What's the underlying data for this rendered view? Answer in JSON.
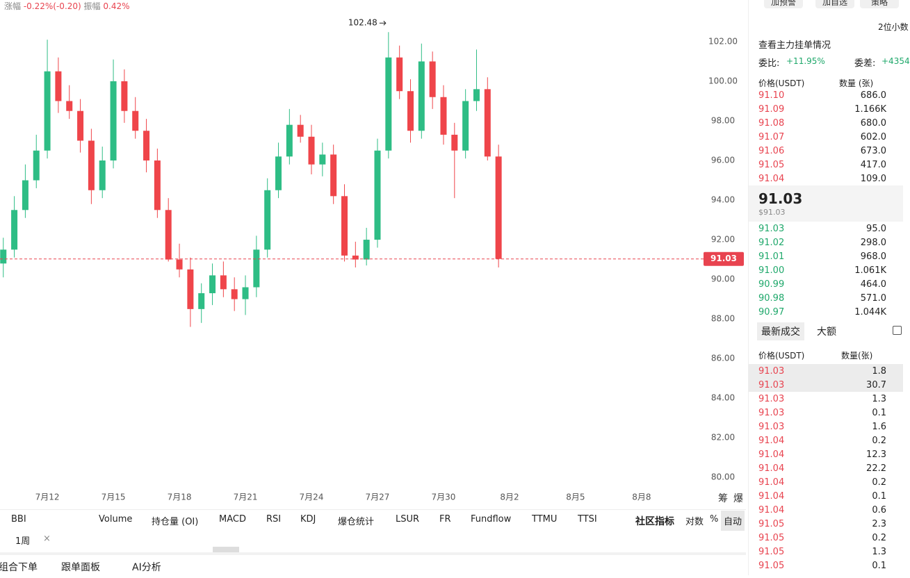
{
  "header": {
    "change_label": "涨幅",
    "change": "-0.22%(-0.20)",
    "amp_label": "振幅",
    "amp": "0.42%"
  },
  "chart_data": {
    "type": "candlestick",
    "x": [
      9,
      9.5,
      10,
      10.5,
      11,
      11.5,
      12,
      12.5,
      13,
      13.5,
      14,
      14.5,
      15,
      15.5,
      16,
      16.5,
      17,
      17.5,
      18,
      18.5,
      19,
      19.5,
      20,
      20.5,
      21,
      21.5,
      22,
      22.5,
      23,
      23.5,
      24,
      24.5,
      25,
      25.5,
      26,
      26.5,
      27,
      27.5,
      28,
      28.5,
      29,
      29.5,
      30,
      30.5,
      31,
      31.5
    ],
    "open": [
      90.8,
      91.5,
      93.5,
      95,
      96.5,
      100.5,
      99,
      98.5,
      97,
      94.5,
      96,
      100,
      98.5,
      97.5,
      96,
      93.5,
      91,
      90.5,
      88.5,
      89.3,
      90.2,
      89.5,
      89,
      89.6,
      91.5,
      94.5,
      96.2,
      97.8,
      97.2,
      95.8,
      96.3,
      94.2,
      91.2,
      91,
      92,
      96.5,
      101.2,
      99.5,
      97.5,
      101,
      99.2,
      97.3,
      96.5,
      99,
      99.6,
      96.2
    ],
    "high": [
      92.1,
      94.2,
      95.8,
      97.3,
      102.1,
      101.2,
      99.8,
      99.1,
      97.6,
      96.7,
      101.1,
      100.6,
      99.2,
      98.1,
      96.6,
      94.1,
      91.8,
      91.1,
      89.8,
      90.8,
      90.9,
      90.1,
      90.2,
      92.2,
      95.1,
      96.9,
      98.6,
      98.3,
      97.8,
      96.9,
      96.8,
      94.8,
      91.9,
      92.6,
      97.1,
      102.48,
      101.8,
      100.1,
      101.9,
      101.5,
      99.8,
      97.9,
      99.6,
      101.6,
      100.2,
      96.8
    ],
    "low": [
      90.1,
      91.1,
      93.1,
      94.6,
      96.1,
      98.4,
      98.1,
      96.4,
      93.8,
      94.1,
      95.6,
      97.9,
      97.1,
      95.4,
      93.1,
      90.9,
      90.1,
      87.6,
      87.8,
      88.7,
      89.1,
      88.4,
      88.2,
      89.1,
      91.1,
      94.1,
      95.8,
      96.9,
      95.3,
      95.2,
      93.8,
      90.9,
      90.6,
      90.7,
      91.6,
      96.1,
      99.1,
      96.9,
      97.1,
      98.6,
      96.8,
      94.1,
      96.1,
      98.5,
      96,
      90.6
    ],
    "close": [
      91.5,
      93.5,
      95,
      96.5,
      100.5,
      99,
      98.5,
      97,
      94.5,
      96,
      100,
      98.5,
      97.5,
      96,
      93.5,
      91,
      90.5,
      88.5,
      89.3,
      90.2,
      89.5,
      89,
      89.6,
      91.5,
      94.5,
      96.2,
      97.8,
      97.2,
      95.8,
      96.3,
      94.2,
      91.2,
      91,
      92,
      96.5,
      101.2,
      99.5,
      97.5,
      101,
      99.2,
      97.3,
      96.5,
      99,
      99.6,
      96.2,
      91.03
    ],
    "up_color": "#2ebd85",
    "down_color": "#ef454a",
    "xlim": [
      8.85,
      40.75
    ],
    "xticks": [
      {
        "value": 11,
        "label": "7月12"
      },
      {
        "value": 14,
        "label": "7月15"
      },
      {
        "value": 17,
        "label": "7月18"
      },
      {
        "value": 20,
        "label": "7月21"
      },
      {
        "value": 23,
        "label": "7月24"
      },
      {
        "value": 26,
        "label": "7月27"
      },
      {
        "value": 29,
        "label": "7月30"
      },
      {
        "value": 32,
        "label": "8月2"
      },
      {
        "value": 35,
        "label": "8月5"
      },
      {
        "value": 38,
        "label": "8月8"
      }
    ],
    "ylim": [
      78.5,
      103.4
    ],
    "yticks": [
      {
        "value": 80,
        "label": "80.00"
      },
      {
        "value": 82,
        "label": "82.00"
      },
      {
        "value": 84,
        "label": "84.00"
      },
      {
        "value": 86,
        "label": "86.00"
      },
      {
        "value": 88,
        "label": "88.00"
      },
      {
        "value": 90,
        "label": "90.00"
      },
      {
        "value": 92,
        "label": "92.00"
      },
      {
        "value": 94,
        "label": "94.00"
      },
      {
        "value": 96,
        "label": "96.00"
      },
      {
        "value": 98,
        "label": "98.00"
      },
      {
        "value": 100,
        "label": "100.00"
      },
      {
        "value": 102,
        "label": "102.00"
      }
    ],
    "last_price": 91.03,
    "max_price": 102.48,
    "grid": false
  },
  "toolbar": {
    "corner": [
      "筹",
      "爆"
    ],
    "indicators": [
      "BBI",
      "Volume",
      "持仓量 (OI)",
      "MACD",
      "RSI",
      "KDJ",
      "爆仓统计",
      "LSUR",
      "FR",
      "Fundflow",
      "TTMU",
      "TTSI"
    ],
    "community": "社区指标",
    "log": "对数",
    "percent": "%",
    "auto": "自动",
    "period": "1周",
    "close": "×"
  },
  "bottom": {
    "tabs": [
      "组合下单",
      "跟单面板",
      "AI分析"
    ]
  },
  "panel": {
    "buttons": [
      "加预警",
      "加自选",
      "策略"
    ],
    "decimals": "2位小数",
    "main_orders": "查看主力挂单情况",
    "ratio_label": "委比:",
    "ratio": "+11.95%",
    "diff_label": "委差:",
    "diff": "+4354",
    "book_header": [
      "价格(USDT)",
      "数量 (张)"
    ],
    "asks": [
      [
        "91.10",
        "686.0"
      ],
      [
        "91.09",
        "1.166K"
      ],
      [
        "91.08",
        "680.0"
      ],
      [
        "91.07",
        "602.0"
      ],
      [
        "91.06",
        "673.0"
      ],
      [
        "91.05",
        "417.0"
      ],
      [
        "91.04",
        "109.0"
      ]
    ],
    "mid": "91.03",
    "mid_usd": "$91.03",
    "bids": [
      [
        "91.03",
        "95.0"
      ],
      [
        "91.02",
        "298.0"
      ],
      [
        "91.01",
        "968.0"
      ],
      [
        "91.00",
        "1.061K"
      ],
      [
        "90.99",
        "464.0"
      ],
      [
        "90.98",
        "571.0"
      ],
      [
        "90.97",
        "1.044K"
      ]
    ],
    "trade_tabs": [
      "最新成交",
      "大额"
    ],
    "trade_header": [
      "价格(USDT)",
      "数量(张)"
    ],
    "trades": [
      [
        "91.03",
        "1.8"
      ],
      [
        "91.03",
        "30.7"
      ],
      [
        "91.03",
        "1.3"
      ],
      [
        "91.03",
        "0.1"
      ],
      [
        "91.03",
        "1.6"
      ],
      [
        "91.04",
        "0.2"
      ],
      [
        "91.04",
        "12.3"
      ],
      [
        "91.04",
        "22.2"
      ],
      [
        "91.04",
        "0.2"
      ],
      [
        "91.04",
        "0.1"
      ],
      [
        "91.04",
        "0.6"
      ],
      [
        "91.05",
        "2.3"
      ],
      [
        "91.05",
        "0.2"
      ],
      [
        "91.05",
        "1.3"
      ],
      [
        "91.05",
        "0.1"
      ]
    ]
  }
}
